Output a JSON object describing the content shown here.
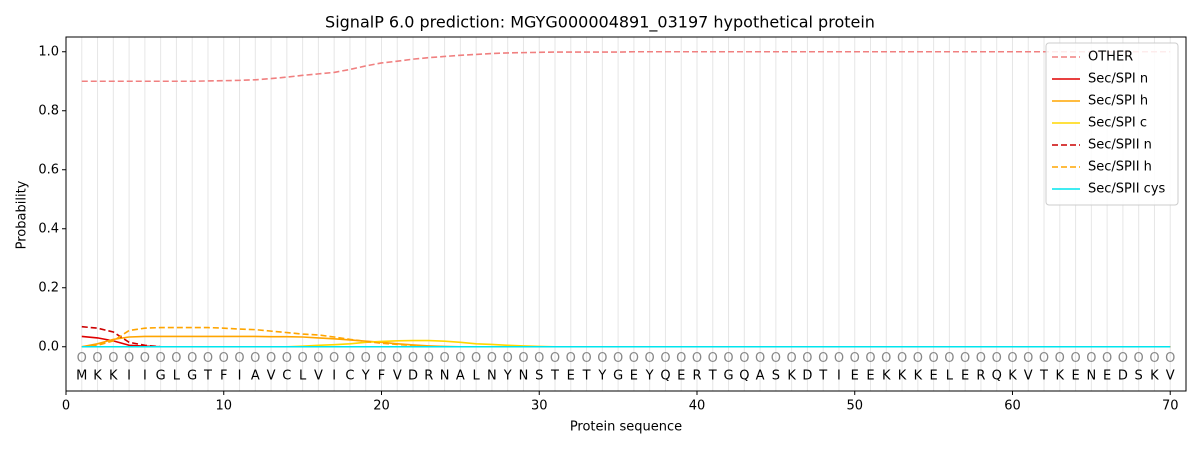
{
  "chart_data": {
    "type": "line",
    "title": "SignalP 6.0 prediction: MGYG000004891_03197 hypothetical protein",
    "xlabel": "Protein sequence",
    "ylabel": "Probability",
    "x": [
      1,
      2,
      3,
      4,
      5,
      6,
      7,
      8,
      9,
      10,
      11,
      12,
      13,
      14,
      15,
      16,
      17,
      18,
      19,
      20,
      21,
      22,
      23,
      24,
      25,
      26,
      27,
      28,
      29,
      30,
      31,
      32,
      33,
      34,
      35,
      36,
      37,
      38,
      39,
      40,
      41,
      42,
      43,
      44,
      45,
      46,
      47,
      48,
      49,
      50,
      51,
      52,
      53,
      54,
      55,
      56,
      57,
      58,
      59,
      60,
      61,
      62,
      63,
      64,
      65,
      66,
      67,
      68,
      69,
      70
    ],
    "sequence": [
      "M",
      "K",
      "K",
      "I",
      "I",
      "G",
      "L",
      "G",
      "T",
      "F",
      "I",
      "A",
      "V",
      "C",
      "L",
      "V",
      "I",
      "C",
      "Y",
      "F",
      "V",
      "D",
      "R",
      "N",
      "A",
      "L",
      "N",
      "Y",
      "N",
      "S",
      "T",
      "E",
      "T",
      "Y",
      "G",
      "E",
      "Y",
      "Q",
      "E",
      "R",
      "T",
      "G",
      "Q",
      "A",
      "S",
      "K",
      "D",
      "T",
      "I",
      "E",
      "E",
      "K",
      "K",
      "K",
      "E",
      "L",
      "E",
      "R",
      "Q",
      "K",
      "V",
      "T",
      "K",
      "E",
      "N",
      "E",
      "D",
      "S",
      "K",
      "V"
    ],
    "labels": [
      "O",
      "O",
      "O",
      "O",
      "O",
      "O",
      "O",
      "O",
      "O",
      "O",
      "O",
      "O",
      "O",
      "O",
      "O",
      "O",
      "O",
      "O",
      "O",
      "O",
      "O",
      "O",
      "O",
      "O",
      "O",
      "O",
      "O",
      "O",
      "O",
      "O",
      "O",
      "O",
      "O",
      "O",
      "O",
      "O",
      "O",
      "O",
      "O",
      "O",
      "O",
      "O",
      "O",
      "O",
      "O",
      "O",
      "O",
      "O",
      "O",
      "O",
      "O",
      "O",
      "O",
      "O",
      "O",
      "O",
      "O",
      "O",
      "O",
      "O",
      "O",
      "O",
      "O",
      "O",
      "O",
      "O",
      "O",
      "O",
      "O",
      "O"
    ],
    "xlim": [
      0,
      71
    ],
    "xticks": [
      0,
      10,
      20,
      30,
      40,
      50,
      60,
      70
    ],
    "ylim": [
      -0.15,
      1.05
    ],
    "yticks": [
      {
        "value": 0,
        "label": "0.0"
      },
      0.2,
      0.4,
      0.6,
      0.8,
      {
        "value": 1,
        "label": "1.0"
      }
    ],
    "grid": true,
    "legend": "upper right",
    "series": [
      {
        "name": "OTHER",
        "color": "#f08080",
        "style": "dashed",
        "values": [
          0.9,
          0.9,
          0.9,
          0.9,
          0.9,
          0.9,
          0.9,
          0.9,
          0.901,
          0.902,
          0.903,
          0.905,
          0.909,
          0.914,
          0.92,
          0.925,
          0.93,
          0.94,
          0.952,
          0.962,
          0.968,
          0.975,
          0.98,
          0.984,
          0.988,
          0.991,
          0.994,
          0.996,
          0.997,
          0.998,
          0.999,
          0.999,
          0.999,
          0.999,
          0.999,
          1,
          1,
          1,
          1,
          1,
          1,
          1,
          1,
          1,
          1,
          1,
          1,
          1,
          1,
          1,
          1,
          1,
          1,
          1,
          1,
          1,
          1,
          1,
          1,
          1,
          1,
          1,
          1,
          1,
          1,
          1,
          1,
          1,
          1,
          1
        ]
      },
      {
        "name": "Sec/SPI n",
        "color": "#e00000",
        "style": "solid",
        "values": [
          0.035,
          0.03,
          0.02,
          0.005,
          0.002,
          0,
          0,
          0,
          0,
          0,
          0,
          0,
          0,
          0,
          0,
          0,
          0,
          0,
          0,
          0,
          0,
          0,
          0,
          0,
          0,
          0,
          0,
          0,
          0,
          0,
          0,
          0,
          0,
          0,
          0,
          0,
          0,
          0,
          0,
          0,
          0,
          0,
          0,
          0,
          0,
          0,
          0,
          0,
          0,
          0,
          0,
          0,
          0,
          0,
          0,
          0,
          0,
          0,
          0,
          0,
          0,
          0,
          0,
          0,
          0,
          0,
          0,
          0,
          0,
          0
        ]
      },
      {
        "name": "Sec/SPI h",
        "color": "#ffa500",
        "style": "solid",
        "values": [
          0,
          0.01,
          0.025,
          0.033,
          0.035,
          0.035,
          0.035,
          0.035,
          0.035,
          0.035,
          0.035,
          0.035,
          0.034,
          0.034,
          0.033,
          0.03,
          0.027,
          0.023,
          0.019,
          0.015,
          0.01,
          0.006,
          0.003,
          0.001,
          0,
          0,
          0,
          0,
          0,
          0,
          0,
          0,
          0,
          0,
          0,
          0,
          0,
          0,
          0,
          0,
          0,
          0,
          0,
          0,
          0,
          0,
          0,
          0,
          0,
          0,
          0,
          0,
          0,
          0,
          0,
          0,
          0,
          0,
          0,
          0,
          0,
          0,
          0,
          0,
          0,
          0,
          0,
          0,
          0,
          0
        ]
      },
      {
        "name": "Sec/SPI c",
        "color": "#ffd700",
        "style": "solid",
        "values": [
          0,
          0,
          0,
          0,
          0,
          0,
          0,
          0,
          0,
          0,
          0,
          0,
          0,
          0,
          0.002,
          0.005,
          0.007,
          0.01,
          0.015,
          0.018,
          0.02,
          0.021,
          0.021,
          0.019,
          0.015,
          0.01,
          0.008,
          0.005,
          0.003,
          0.001,
          0,
          0,
          0,
          0,
          0,
          0,
          0,
          0,
          0,
          0,
          0,
          0,
          0,
          0,
          0,
          0,
          0,
          0,
          0,
          0,
          0,
          0,
          0,
          0,
          0,
          0,
          0,
          0,
          0,
          0,
          0,
          0,
          0,
          0,
          0,
          0,
          0,
          0,
          0,
          0
        ]
      },
      {
        "name": "Sec/SPII n",
        "color": "#cc0000",
        "style": "dashed",
        "values": [
          0.068,
          0.063,
          0.05,
          0.015,
          0.005,
          0,
          0,
          0,
          0,
          0,
          0,
          0,
          0,
          0,
          0,
          0,
          0,
          0,
          0,
          0,
          0,
          0,
          0,
          0,
          0,
          0,
          0,
          0,
          0,
          0,
          0,
          0,
          0,
          0,
          0,
          0,
          0,
          0,
          0,
          0,
          0,
          0,
          0,
          0,
          0,
          0,
          0,
          0,
          0,
          0,
          0,
          0,
          0,
          0,
          0,
          0,
          0,
          0,
          0,
          0,
          0,
          0,
          0,
          0,
          0,
          0,
          0,
          0,
          0,
          0
        ]
      },
      {
        "name": "Sec/SPII h",
        "color": "#ffa500",
        "style": "dashed",
        "values": [
          0,
          0.005,
          0.02,
          0.055,
          0.063,
          0.065,
          0.065,
          0.065,
          0.065,
          0.063,
          0.06,
          0.058,
          0.053,
          0.048,
          0.043,
          0.04,
          0.033,
          0.025,
          0.018,
          0.012,
          0.008,
          0.004,
          0.002,
          0,
          0,
          0,
          0,
          0,
          0,
          0,
          0,
          0,
          0,
          0,
          0,
          0,
          0,
          0,
          0,
          0,
          0,
          0,
          0,
          0,
          0,
          0,
          0,
          0,
          0,
          0,
          0,
          0,
          0,
          0,
          0,
          0,
          0,
          0,
          0,
          0,
          0,
          0,
          0,
          0,
          0,
          0,
          0,
          0,
          0,
          0
        ]
      },
      {
        "name": "Sec/SPII cys",
        "color": "#00e5ee",
        "style": "solid",
        "values": [
          0,
          0,
          0,
          0,
          0,
          0,
          0,
          0,
          0,
          0,
          0,
          0,
          0,
          0,
          0,
          0,
          0,
          0,
          0,
          0,
          0,
          0,
          0,
          0,
          0,
          0,
          0,
          0,
          0,
          0,
          0,
          0,
          0,
          0,
          0,
          0,
          0,
          0,
          0,
          0,
          0,
          0,
          0,
          0,
          0,
          0,
          0,
          0,
          0,
          0,
          0,
          0,
          0,
          0,
          0,
          0,
          0,
          0,
          0,
          0,
          0,
          0,
          0,
          0,
          0,
          0,
          0,
          0,
          0,
          0
        ]
      }
    ]
  }
}
